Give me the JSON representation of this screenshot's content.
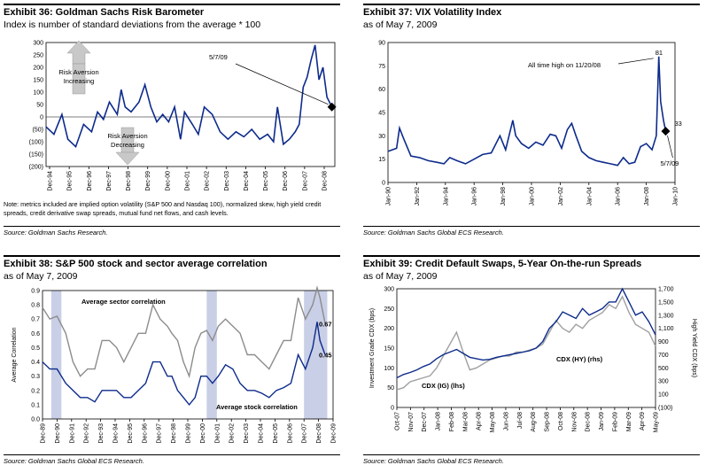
{
  "panels": {
    "p36": {
      "title": "Exhibit 36:  Goldman Sachs Risk Barometer",
      "subtitle": "Index is number of standard deviations from the average * 100",
      "note": "Note: metrics included are implied option volatility (S&P 500 and Nasdaq 100), normalized skew, high yield credit spreads, credit derivative swap spreads, mutual fund net flows, and cash levels.",
      "source": "Source: Goldman Sachs Research."
    },
    "p37": {
      "title": "Exhibit 37:  VIX Volatility Index",
      "subtitle": "as of May 7, 2009",
      "source": "Source: Goldman Sachs Global ECS Research."
    },
    "p38": {
      "title": "Exhibit 38:  S&P 500 stock and sector average correlation",
      "subtitle": "as of May 7, 2009",
      "source": "Source: Goldman Sachs Global ECS Research."
    },
    "p39": {
      "title": "Exhibit 39:  Credit Default Swaps, 5-Year On-the-run Spreads",
      "subtitle": "as of May 7, 2009",
      "source": "Source: Goldman Sachs Global ECS Research."
    }
  },
  "chart_data": [
    {
      "id": "risk_barometer",
      "type": "line",
      "title": "Exhibit 36:  Goldman Sachs Risk Barometer",
      "x_ticks": [
        "Dec-94",
        "Dec-95",
        "Dec-96",
        "Dec-97",
        "Dec-98",
        "Dec-99",
        "Dec-00",
        "Dec-01",
        "Dec-02",
        "Dec-03",
        "Dec-04",
        "Dec-05",
        "Dec-06",
        "Dec-07",
        "Dec-08"
      ],
      "x": [
        1994.9,
        1995.3,
        1995.7,
        1996.0,
        1996.4,
        1996.8,
        1997.2,
        1997.5,
        1997.8,
        1998.1,
        1998.5,
        1998.7,
        1998.9,
        1999.2,
        1999.6,
        1999.9,
        2000.2,
        2000.5,
        2000.8,
        2001.1,
        2001.4,
        2001.7,
        2001.9,
        2002.3,
        2002.6,
        2002.9,
        2003.3,
        2003.7,
        2004.1,
        2004.5,
        2004.9,
        2005.3,
        2005.7,
        2006.1,
        2006.4,
        2006.6,
        2006.9,
        2007.2,
        2007.5,
        2007.7,
        2007.9,
        2008.1,
        2008.3,
        2008.5,
        2008.7,
        2008.9,
        2009.1,
        2009.35
      ],
      "y": [
        -40,
        -70,
        10,
        -90,
        -120,
        -30,
        -60,
        20,
        -10,
        60,
        10,
        110,
        40,
        20,
        60,
        130,
        40,
        -20,
        10,
        -20,
        40,
        -90,
        20,
        -30,
        -70,
        40,
        10,
        -60,
        -90,
        -60,
        -80,
        -50,
        -90,
        -70,
        -100,
        40,
        -110,
        -90,
        -60,
        -30,
        120,
        160,
        230,
        290,
        150,
        200,
        80,
        40
      ],
      "ylim": [
        -200,
        300
      ],
      "y_ticks": [
        300,
        250,
        200,
        150,
        100,
        50,
        0,
        -50,
        -100,
        -150,
        -200
      ],
      "y_tick_labels": [
        "300",
        "250",
        "200",
        "150",
        "100",
        "50",
        "0",
        "(50)",
        "(100)",
        "(150)",
        "(200)"
      ],
      "annotations": {
        "up": "Risk Aversion\nIncreasing",
        "down": "Risk Aversion\nDecreasing",
        "last_label": "5/7/09"
      },
      "last_point": {
        "x": 2009.35,
        "y": 40
      },
      "color": "#0d2b8c"
    },
    {
      "id": "vix",
      "type": "line",
      "title": "Exhibit 37:  VIX Volatility Index",
      "x_ticks": [
        "Jan-90",
        "Jan-92",
        "Jan-94",
        "Jan-96",
        "Jan-98",
        "Jan-00",
        "Jan-02",
        "Jan-04",
        "Jan-06",
        "Jan-08",
        "Jan-10"
      ],
      "x": [
        1990.0,
        1990.6,
        1990.8,
        1991.1,
        1991.6,
        1992.2,
        1992.8,
        1993.4,
        1993.9,
        1994.3,
        1994.8,
        1995.4,
        1996.0,
        1996.6,
        1997.2,
        1997.8,
        1998.2,
        1998.7,
        1998.9,
        1999.3,
        1999.8,
        2000.3,
        2000.8,
        2001.3,
        2001.7,
        2002.1,
        2002.5,
        2002.8,
        2003.1,
        2003.5,
        2004.0,
        2004.5,
        2005.0,
        2005.5,
        2006.0,
        2006.4,
        2006.8,
        2007.2,
        2007.6,
        2008.0,
        2008.4,
        2008.7,
        2008.87,
        2009.0,
        2009.2,
        2009.35
      ],
      "y": [
        20,
        22,
        35,
        28,
        17,
        16,
        14,
        13,
        12,
        16,
        14,
        12,
        15,
        18,
        19,
        30,
        21,
        40,
        30,
        25,
        22,
        26,
        24,
        31,
        30,
        22,
        34,
        38,
        30,
        20,
        16,
        14,
        13,
        12,
        11,
        16,
        12,
        13,
        23,
        25,
        21,
        30,
        81,
        52,
        40,
        33
      ],
      "ylim": [
        0,
        90
      ],
      "y_ticks": [
        0,
        15,
        30,
        45,
        60,
        75,
        90
      ],
      "y_tick_labels": [
        "0",
        "15",
        "30",
        "45",
        "60",
        "75",
        "90"
      ],
      "annotations": {
        "peak_note": "All time high on 11/20/08",
        "peak_value": "81",
        "last_value": "33",
        "last_label": "5/7/09"
      },
      "last_point": {
        "x": 2009.35,
        "y": 33
      },
      "color": "#0d2b8c"
    },
    {
      "id": "correlation",
      "type": "line",
      "title": "Exhibit 38:  S&P 500 stock and sector average correlation",
      "ylabel": "Average Correlation",
      "x_ticks": [
        "Dec-89",
        "Dec-90",
        "Dec-91",
        "Dec-92",
        "Dec-93",
        "Dec-94",
        "Dec-95",
        "Dec-96",
        "Dec-97",
        "Dec-98",
        "Dec-99",
        "Dec-00",
        "Dec-01",
        "Dec-02",
        "Dec-03",
        "Dec-04",
        "Dec-05",
        "Dec-06",
        "Dec-07",
        "Dec-08",
        "Dec-09"
      ],
      "x": [
        1989.9,
        1990.4,
        1990.9,
        1991.5,
        1992.0,
        1992.5,
        1993.0,
        1993.5,
        1994.0,
        1994.5,
        1995.0,
        1995.5,
        1996.0,
        1996.5,
        1997.0,
        1997.5,
        1998.0,
        1998.5,
        1998.8,
        1999.2,
        1999.6,
        2000.0,
        2000.4,
        2000.8,
        2001.2,
        2001.6,
        2002.0,
        2002.5,
        2003.0,
        2003.5,
        2004.0,
        2004.5,
        2005.0,
        2005.5,
        2006.0,
        2006.5,
        2007.0,
        2007.5,
        2008.0,
        2008.5,
        2008.8,
        2009.0,
        2009.35
      ],
      "ylim": [
        0,
        0.9
      ],
      "y_ticks": [
        0,
        0.1,
        0.2,
        0.3,
        0.4,
        0.5,
        0.6,
        0.7,
        0.8,
        0.9
      ],
      "y_tick_labels": [
        "0.0",
        "0.1",
        "0.2",
        "0.3",
        "0.4",
        "0.5",
        "0.6",
        "0.7",
        "0.8",
        "0.9"
      ],
      "series": [
        {
          "name": "Average sector correlation",
          "color": "#8c8c8c",
          "values": [
            0.78,
            0.7,
            0.72,
            0.6,
            0.4,
            0.3,
            0.35,
            0.35,
            0.55,
            0.55,
            0.5,
            0.4,
            0.5,
            0.6,
            0.6,
            0.8,
            0.7,
            0.65,
            0.6,
            0.55,
            0.4,
            0.3,
            0.5,
            0.6,
            0.62,
            0.55,
            0.65,
            0.7,
            0.65,
            0.6,
            0.45,
            0.45,
            0.4,
            0.35,
            0.45,
            0.55,
            0.55,
            0.85,
            0.7,
            0.8,
            0.92,
            0.85,
            0.67
          ]
        },
        {
          "name": "Average stock correlation",
          "color": "#0d2b8c",
          "values": [
            0.4,
            0.35,
            0.35,
            0.25,
            0.2,
            0.15,
            0.15,
            0.12,
            0.2,
            0.2,
            0.2,
            0.15,
            0.15,
            0.2,
            0.25,
            0.4,
            0.4,
            0.3,
            0.3,
            0.2,
            0.15,
            0.1,
            0.15,
            0.3,
            0.3,
            0.25,
            0.3,
            0.38,
            0.35,
            0.25,
            0.2,
            0.2,
            0.18,
            0.15,
            0.2,
            0.22,
            0.25,
            0.45,
            0.35,
            0.5,
            0.68,
            0.55,
            0.45
          ]
        }
      ],
      "shaded_periods": [
        [
          1990.5,
          1991.2
        ],
        [
          2001.2,
          2001.9
        ],
        [
          2007.9,
          2009.5
        ]
      ],
      "annotations": {
        "sector_label": "Average sector correlation",
        "stock_label": "Average stock correlation",
        "sector_last": "0.67",
        "stock_last": "0.45"
      }
    },
    {
      "id": "cdx",
      "type": "line",
      "title": "Exhibit 39:  Credit Default Swaps, 5-Year On-the-run Spreads",
      "ylabel_left": "Investment Grade CDX (bps)",
      "ylabel_right": "High Yield CDX (bps)",
      "x_ticks": [
        "Oct-07",
        "Nov-07",
        "Dec-07",
        "Jan-08",
        "Feb-08",
        "Mar-08",
        "Apr-08",
        "May-08",
        "Jun-08",
        "Jul-08",
        "Aug-08",
        "Sep-08",
        "Oct-08",
        "Nov-08",
        "Dec-08",
        "Jan-09",
        "Feb-09",
        "Mar-09",
        "Apr-09",
        "May-09"
      ],
      "x": [
        0,
        0.5,
        1,
        1.5,
        2,
        2.5,
        3,
        3.5,
        4,
        4.5,
        5,
        5.5,
        6,
        6.5,
        7,
        7.5,
        8,
        8.5,
        9,
        9.5,
        10,
        10.5,
        11,
        11.5,
        12,
        12.5,
        13,
        13.5,
        14,
        14.5,
        15,
        15.5,
        16,
        16.5,
        17,
        17.5,
        18,
        18.5,
        19,
        19.5
      ],
      "ylim_left": [
        0,
        300
      ],
      "y_ticks_left": [
        0,
        50,
        100,
        150,
        200,
        250,
        300
      ],
      "y_tick_labels_left": [
        "0",
        "50",
        "100",
        "150",
        "200",
        "250",
        "300"
      ],
      "ylim_right": [
        -100,
        1700
      ],
      "y_ticks_right": [
        -100,
        100,
        300,
        500,
        700,
        900,
        1100,
        1300,
        1500,
        1700
      ],
      "y_tick_labels_right": [
        "(100)",
        "100",
        "300",
        "500",
        "700",
        "900",
        "1,100",
        "1,300",
        "1,500",
        "1,700"
      ],
      "series": [
        {
          "name": "CDX (IG) (lhs)",
          "axis": "left",
          "color": "#a0a0a0",
          "values": [
            45,
            50,
            65,
            70,
            75,
            80,
            100,
            130,
            160,
            190,
            140,
            95,
            100,
            110,
            120,
            125,
            130,
            130,
            140,
            140,
            145,
            150,
            160,
            190,
            220,
            200,
            190,
            210,
            200,
            220,
            230,
            240,
            260,
            250,
            280,
            240,
            210,
            200,
            190,
            155
          ]
        },
        {
          "name": "CDX (HY) (rhs)",
          "axis": "right",
          "color": "#0d2b8c",
          "values": [
            350,
            400,
            430,
            470,
            520,
            560,
            640,
            700,
            740,
            780,
            720,
            660,
            640,
            620,
            630,
            660,
            680,
            700,
            720,
            740,
            760,
            800,
            900,
            1100,
            1200,
            1350,
            1300,
            1250,
            1400,
            1300,
            1350,
            1400,
            1500,
            1500,
            1700,
            1500,
            1300,
            1350,
            1200,
            1000
          ]
        }
      ],
      "annotations": {
        "ig_label": "CDX (IG) (lhs)",
        "hy_label": "CDX (HY) (rhs)"
      }
    }
  ]
}
